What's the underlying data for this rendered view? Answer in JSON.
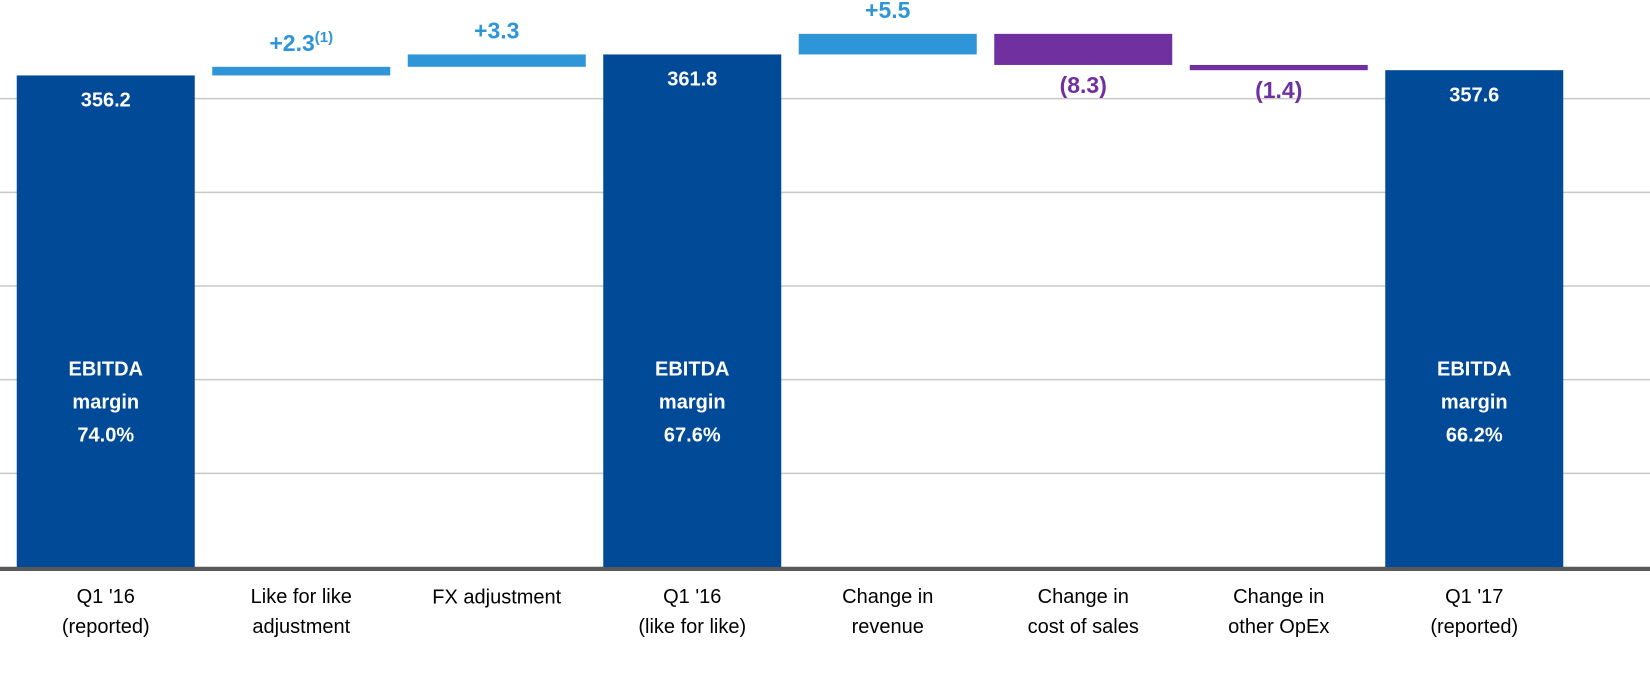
{
  "chart_data": {
    "type": "waterfall",
    "categories": [
      "Q1 '16\n(reported)",
      "Like for like\nadjustment",
      "FX adjustment",
      "Q1 '16\n(like for like)",
      "Change in\nrevenue",
      "Change in\ncost of sales",
      "Change in\nother OpEx",
      "Q1 '17\n(reported)"
    ],
    "values": [
      356.2,
      2.3,
      3.3,
      361.8,
      5.5,
      -8.3,
      -1.4,
      357.6
    ],
    "value_labels": [
      "356.2",
      "+2.3",
      "+3.3",
      "361.8",
      "+5.5",
      "(8.3)",
      "(1.4)",
      "357.6"
    ],
    "footnote_marks": [
      null,
      "(1)",
      null,
      null,
      null,
      null,
      null,
      null
    ],
    "is_total": [
      true,
      false,
      false,
      true,
      false,
      false,
      false,
      true
    ],
    "annotations": [
      [
        "EBITDA",
        "margin",
        "74.0%"
      ],
      null,
      null,
      [
        "EBITDA",
        "margin",
        "67.6%"
      ],
      null,
      null,
      null,
      [
        "EBITDA",
        "margin",
        "66.2%"
      ]
    ],
    "colors": {
      "total": "#004a97",
      "increase": "#2e95d9",
      "decrease": "#7030a0"
    },
    "ylim": [
      225,
      375
    ],
    "yticks": [
      225,
      250,
      275,
      300,
      325,
      350
    ],
    "grid": true
  }
}
